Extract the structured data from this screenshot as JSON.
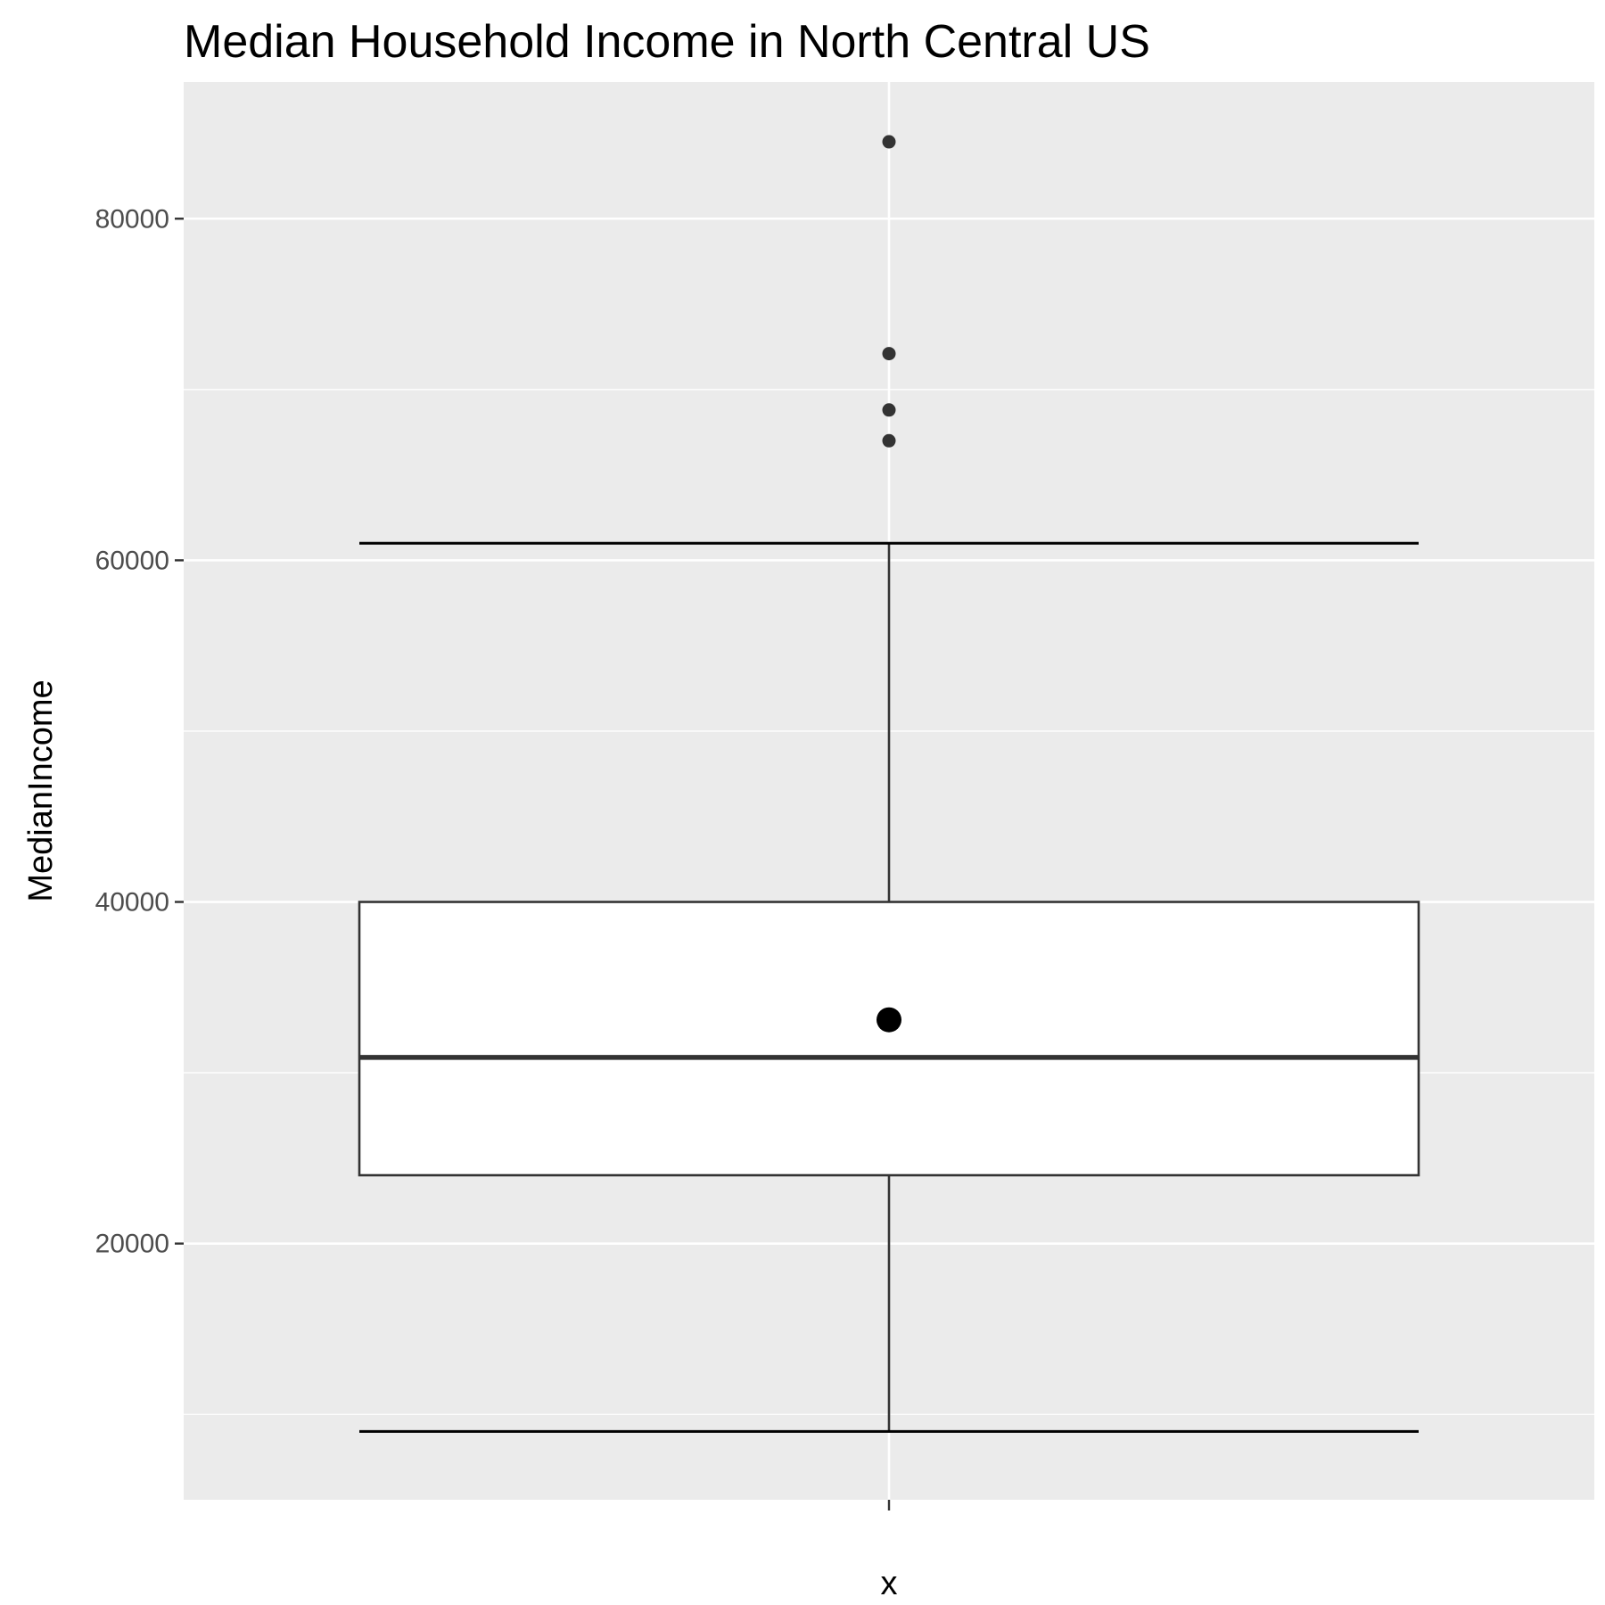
{
  "chart_data": {
    "type": "boxplot",
    "title": "Median Household Income in North Central US",
    "xlabel": "x",
    "ylabel": "MedianIncome",
    "ylim": [
      5000,
      88000
    ],
    "yticks": [
      20000,
      40000,
      60000,
      80000
    ],
    "minor_yticks": [
      10000,
      30000,
      50000,
      70000
    ],
    "grid": true,
    "box": {
      "category": "",
      "whisker_low": 9000,
      "q1": 24000,
      "median": 30900,
      "q3": 40000,
      "whisker_high": 61000,
      "mean": 33100,
      "outliers": [
        67000,
        68800,
        72100,
        84500
      ]
    },
    "colors": {
      "panel": "#ebebeb",
      "grid": "#ffffff",
      "box_fill": "#ffffff",
      "box_line": "#333333",
      "mean_point": "#000000"
    }
  }
}
